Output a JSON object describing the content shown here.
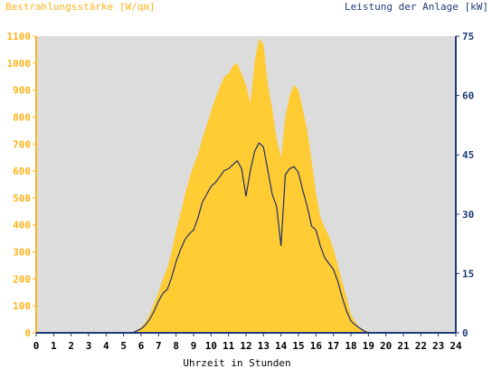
{
  "colors": {
    "plot_background": "#dcdcdc",
    "irradiance_fill": "#ffcc33",
    "power_line": "#1f2f6a",
    "left_axis": "#ffb31a",
    "right_axis": "#1f3a7a",
    "text_dark": "#000000"
  },
  "chart_data": {
    "type": "area",
    "xlabel": "Uhrzeit in Stunden",
    "ylabel_left": "Bestrahlungsstärke [W/qm]",
    "ylabel_right": "Leistung der Anlage [kW]",
    "xlim": [
      0,
      24
    ],
    "ylim_left": [
      0,
      1100
    ],
    "ylim_right": [
      0,
      75
    ],
    "x_ticks": [
      "0",
      "1",
      "2",
      "3",
      "4",
      "5",
      "6",
      "7",
      "8",
      "9",
      "10",
      "11",
      "12",
      "13",
      "14",
      "15",
      "16",
      "17",
      "18",
      "19",
      "20",
      "21",
      "22",
      "23",
      "24"
    ],
    "y_left_ticks": [
      "0",
      "100",
      "200",
      "300",
      "400",
      "500",
      "600",
      "700",
      "800",
      "900",
      "1000",
      "1100"
    ],
    "y_right_ticks": [
      "0",
      "15",
      "30",
      "45",
      "60",
      "75"
    ],
    "grid": false,
    "series": [
      {
        "name": "Bestrahlungsstärke [W/qm]",
        "axis": "left",
        "style": "area",
        "color": "#ffcc33",
        "points": [
          [
            0,
            0
          ],
          [
            5.5,
            0
          ],
          [
            5.75,
            10
          ],
          [
            6,
            20
          ],
          [
            6.25,
            40
          ],
          [
            6.5,
            70
          ],
          [
            6.75,
            110
          ],
          [
            7,
            150
          ],
          [
            7.25,
            200
          ],
          [
            7.5,
            240
          ],
          [
            7.75,
            300
          ],
          [
            8,
            380
          ],
          [
            8.25,
            440
          ],
          [
            8.5,
            510
          ],
          [
            8.75,
            570
          ],
          [
            9,
            620
          ],
          [
            9.25,
            660
          ],
          [
            9.5,
            720
          ],
          [
            9.75,
            770
          ],
          [
            10,
            820
          ],
          [
            10.25,
            870
          ],
          [
            10.5,
            910
          ],
          [
            10.75,
            950
          ],
          [
            11,
            960
          ],
          [
            11.25,
            990
          ],
          [
            11.5,
            1000
          ],
          [
            11.75,
            960
          ],
          [
            12,
            920
          ],
          [
            12.25,
            850
          ],
          [
            12.5,
            1010
          ],
          [
            12.75,
            1090
          ],
          [
            13,
            1070
          ],
          [
            13.25,
            920
          ],
          [
            13.5,
            830
          ],
          [
            13.75,
            720
          ],
          [
            14,
            650
          ],
          [
            14.25,
            800
          ],
          [
            14.5,
            880
          ],
          [
            14.75,
            920
          ],
          [
            15,
            900
          ],
          [
            15.25,
            830
          ],
          [
            15.5,
            750
          ],
          [
            15.75,
            640
          ],
          [
            16,
            520
          ],
          [
            16.25,
            430
          ],
          [
            16.5,
            390
          ],
          [
            16.75,
            360
          ],
          [
            17,
            310
          ],
          [
            17.25,
            250
          ],
          [
            17.5,
            190
          ],
          [
            17.75,
            130
          ],
          [
            18,
            70
          ],
          [
            18.25,
            40
          ],
          [
            18.5,
            20
          ],
          [
            18.75,
            10
          ],
          [
            19,
            5
          ],
          [
            19.25,
            0
          ],
          [
            24,
            0
          ]
        ]
      },
      {
        "name": "Leistung der Anlage [kW]",
        "axis": "right",
        "style": "line",
        "color": "#1f2f6a",
        "points": [
          [
            0,
            0
          ],
          [
            5.5,
            0
          ],
          [
            5.75,
            0.5
          ],
          [
            6,
            1
          ],
          [
            6.25,
            2
          ],
          [
            6.5,
            3.5
          ],
          [
            6.75,
            5.5
          ],
          [
            7,
            8
          ],
          [
            7.25,
            10
          ],
          [
            7.5,
            11
          ],
          [
            7.75,
            14
          ],
          [
            8,
            18
          ],
          [
            8.25,
            21
          ],
          [
            8.5,
            23.5
          ],
          [
            8.75,
            25
          ],
          [
            9,
            26
          ],
          [
            9.25,
            29
          ],
          [
            9.5,
            33
          ],
          [
            9.75,
            35
          ],
          [
            10,
            37
          ],
          [
            10.25,
            38
          ],
          [
            10.5,
            39.5
          ],
          [
            10.75,
            41
          ],
          [
            11,
            41.5
          ],
          [
            11.25,
            42.5
          ],
          [
            11.5,
            43.5
          ],
          [
            11.75,
            41.5
          ],
          [
            12,
            34.5
          ],
          [
            12.25,
            41
          ],
          [
            12.5,
            46
          ],
          [
            12.75,
            48
          ],
          [
            13,
            47
          ],
          [
            13.25,
            41
          ],
          [
            13.5,
            35
          ],
          [
            13.75,
            32
          ],
          [
            14,
            22
          ],
          [
            14.25,
            40
          ],
          [
            14.5,
            41.5
          ],
          [
            14.75,
            42
          ],
          [
            15,
            40.5
          ],
          [
            15.25,
            36
          ],
          [
            15.5,
            32
          ],
          [
            15.75,
            27
          ],
          [
            16,
            26
          ],
          [
            16.25,
            22
          ],
          [
            16.5,
            19
          ],
          [
            16.75,
            17.5
          ],
          [
            17,
            16
          ],
          [
            17.25,
            13
          ],
          [
            17.5,
            9
          ],
          [
            17.75,
            5.5
          ],
          [
            18,
            3
          ],
          [
            18.25,
            2
          ],
          [
            18.5,
            1.2
          ],
          [
            18.75,
            0.5
          ],
          [
            19,
            0
          ],
          [
            24,
            0
          ]
        ]
      }
    ]
  }
}
